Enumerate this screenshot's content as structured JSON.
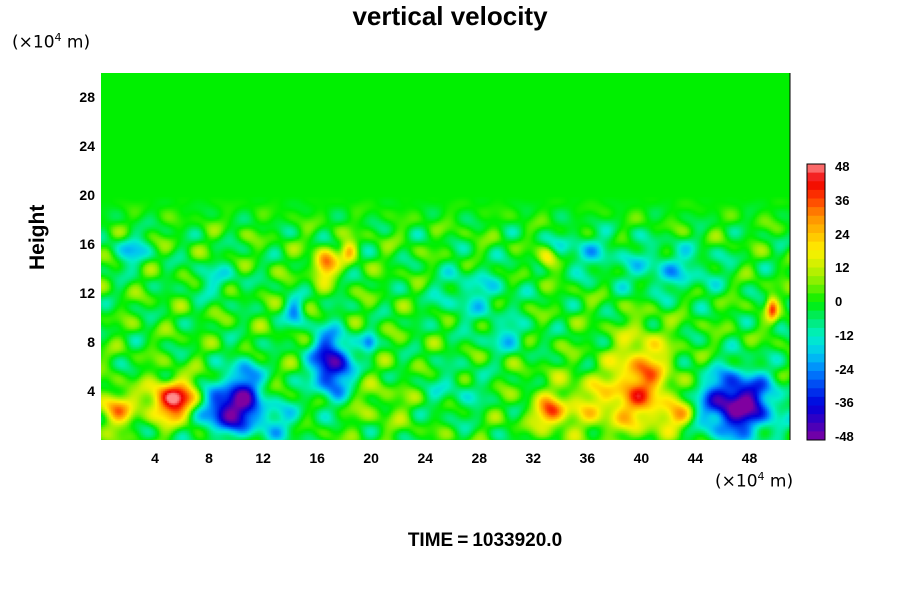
{
  "chart_data": {
    "type": "heatmap",
    "title": "vertical velocity",
    "ylabel": "Height",
    "xunit_prefix": "(×10",
    "xunit_exp": "4",
    "xunit_suffix": " m)",
    "yunit_prefix": "(×10",
    "yunit_exp": "4",
    "yunit_suffix": " m)",
    "xlim": [
      0,
      51
    ],
    "ylim": [
      0,
      30
    ],
    "x_ticks": [
      "4",
      "8",
      "12",
      "16",
      "20",
      "24",
      "28",
      "32",
      "36",
      "40",
      "44",
      "48"
    ],
    "y_ticks": [
      "4",
      "8",
      "12",
      "16",
      "20",
      "24",
      "28"
    ],
    "colorbar": {
      "range": [
        -48,
        48
      ],
      "ticks": [
        "48",
        "36",
        "24",
        "12",
        "0",
        "-12",
        "-24",
        "-36",
        "-48"
      ]
    },
    "background_value": 0,
    "features": [
      {
        "x": 1.0,
        "y": 2.6,
        "sx": 0.8,
        "sy": 1.0,
        "v": 28
      },
      {
        "x": 5.4,
        "y": 3.3,
        "sx": 1.3,
        "sy": 1.1,
        "v": 48
      },
      {
        "x": 9.4,
        "y": 2.6,
        "sx": 1.6,
        "sy": 1.3,
        "v": -46
      },
      {
        "x": 10.5,
        "y": 5.0,
        "sx": 0.8,
        "sy": 1.3,
        "v": -25
      },
      {
        "x": 17.0,
        "y": 6.3,
        "sx": 1.0,
        "sy": 1.8,
        "v": -44
      },
      {
        "x": 19.8,
        "y": 8.0,
        "sx": 0.4,
        "sy": 0.6,
        "v": -20
      },
      {
        "x": 14.3,
        "y": 10.5,
        "sx": 0.5,
        "sy": 0.9,
        "v": -20
      },
      {
        "x": 16.5,
        "y": 14.4,
        "sx": 0.6,
        "sy": 0.8,
        "v": 34
      },
      {
        "x": 18.3,
        "y": 15.5,
        "sx": 0.4,
        "sy": 0.6,
        "v": 24
      },
      {
        "x": 2.2,
        "y": 15.5,
        "sx": 0.9,
        "sy": 0.9,
        "v": -16
      },
      {
        "x": 8.5,
        "y": 13.2,
        "sx": 1.3,
        "sy": 1.0,
        "v": -10
      },
      {
        "x": 27.5,
        "y": 12.0,
        "sx": 2.0,
        "sy": 1.6,
        "v": -12
      },
      {
        "x": 33.0,
        "y": 14.8,
        "sx": 0.5,
        "sy": 0.7,
        "v": 24
      },
      {
        "x": 35.5,
        "y": 15.5,
        "sx": 2.0,
        "sy": 1.2,
        "v": -12
      },
      {
        "x": 42.0,
        "y": 14.0,
        "sx": 2.5,
        "sy": 1.4,
        "v": -14
      },
      {
        "x": 26.0,
        "y": 4.0,
        "sx": 2.0,
        "sy": 1.5,
        "v": -8
      },
      {
        "x": 37.5,
        "y": 3.0,
        "sx": 3.5,
        "sy": 1.7,
        "v": 16
      },
      {
        "x": 40.0,
        "y": 5.5,
        "sx": 1.4,
        "sy": 2.4,
        "v": 26
      },
      {
        "x": 33.2,
        "y": 2.3,
        "sx": 0.7,
        "sy": 0.7,
        "v": 32
      },
      {
        "x": 42.8,
        "y": 2.0,
        "sx": 0.8,
        "sy": 0.7,
        "v": 22
      },
      {
        "x": 47.0,
        "y": 3.0,
        "sx": 1.9,
        "sy": 1.8,
        "v": -50
      },
      {
        "x": 49.6,
        "y": 10.8,
        "sx": 0.3,
        "sy": 0.7,
        "v": 30
      },
      {
        "x": 30.0,
        "y": 8.5,
        "sx": 1.2,
        "sy": 0.8,
        "v": -14
      },
      {
        "x": 21.0,
        "y": 3.2,
        "sx": 2.2,
        "sy": 1.4,
        "v": 6
      },
      {
        "x": 13.0,
        "y": 1.5,
        "sx": 1.4,
        "sy": 1.2,
        "v": -12
      }
    ],
    "time_label": "TIME",
    "time_value": "1033920.0"
  }
}
